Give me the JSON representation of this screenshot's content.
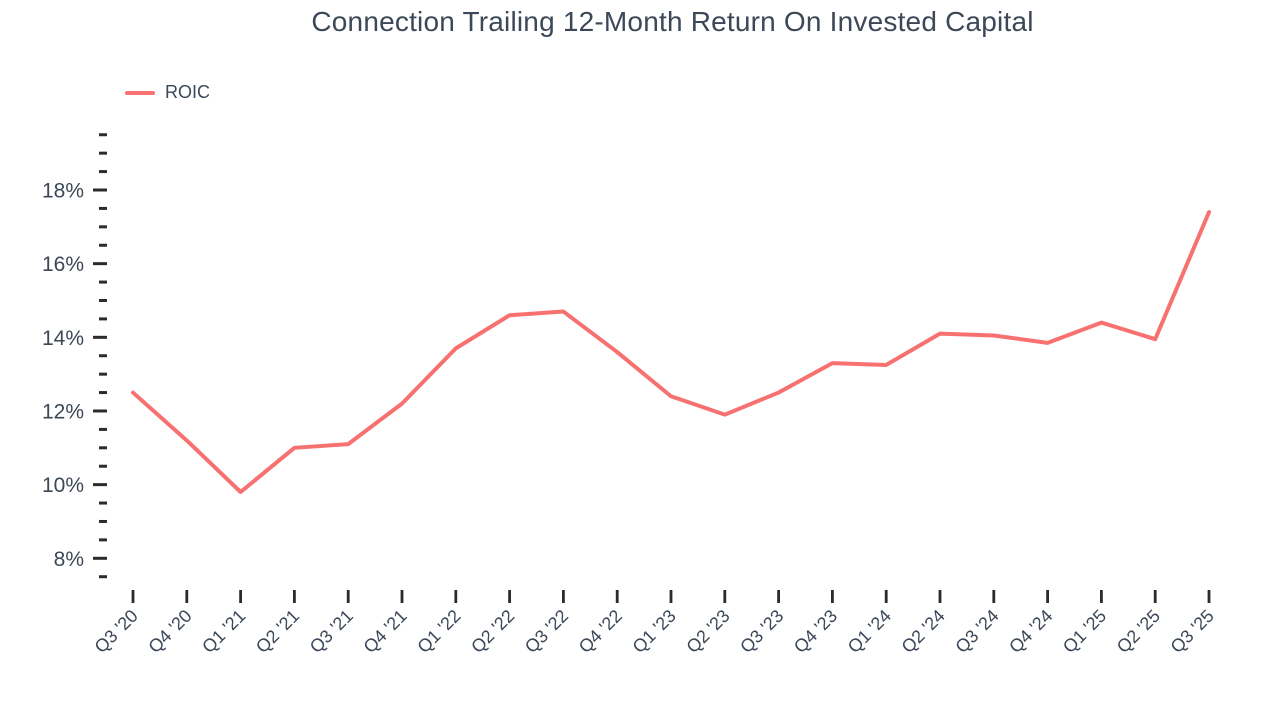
{
  "chart": {
    "title": "Connection Trailing 12-Month Return On Invested Capital",
    "legend": "ROIC"
  },
  "chart_data": {
    "type": "line",
    "title": "Connection Trailing 12-Month Return On Invested Capital",
    "categories": [
      "Q3 '20",
      "Q4 '20",
      "Q1 '21",
      "Q2 '21",
      "Q3 '21",
      "Q4 '21",
      "Q1 '22",
      "Q2 '22",
      "Q3 '22",
      "Q4 '22",
      "Q1 '23",
      "Q2 '23",
      "Q3 '23",
      "Q4 '23",
      "Q1 '24",
      "Q2 '24",
      "Q3 '24",
      "Q4 '24",
      "Q1 '25",
      "Q2 '25",
      "Q3 '25"
    ],
    "series": [
      {
        "name": "ROIC",
        "color": "#F87171",
        "values": [
          12.5,
          11.2,
          9.8,
          11.0,
          11.1,
          12.2,
          13.7,
          14.6,
          14.7,
          13.6,
          12.4,
          11.9,
          12.5,
          13.3,
          13.25,
          14.1,
          14.05,
          13.85,
          14.4,
          13.95,
          17.4
        ]
      }
    ],
    "xlabel": "",
    "ylabel": "",
    "ylim": [
      7.5,
      19.5
    ],
    "y_major_ticks": [
      8,
      10,
      12,
      14,
      16,
      18
    ],
    "y_minor_step": 0.5,
    "y_tick_suffix": "%",
    "grid": false,
    "legend_position": "top-left",
    "background": "#ffffff",
    "text_color": "#3C4858",
    "tick_color": "#2B2B2B",
    "x_label_rotation": -45
  }
}
